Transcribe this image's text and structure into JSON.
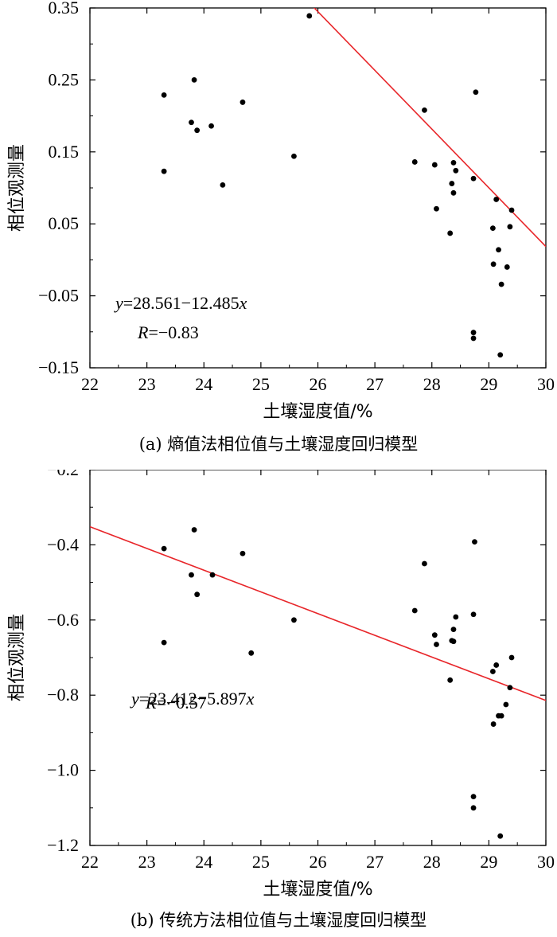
{
  "chart_data": [
    {
      "type": "scatter",
      "title": "",
      "xlabel": "土壤湿度值/%",
      "ylabel": "相位观测量",
      "caption": "(a) 熵值法相位值与土壤湿度回归模型",
      "xlim": [
        22,
        30
      ],
      "ylim": [
        -0.15,
        0.35
      ],
      "xticks": [
        22,
        23,
        24,
        25,
        26,
        27,
        28,
        29,
        30
      ],
      "yticks": [
        -0.15,
        -0.05,
        0.05,
        0.15,
        0.25,
        0.35
      ],
      "ytick_labels": [
        "−0.15",
        "−0.05",
        "0.05",
        "0.15",
        "0.25",
        "0.35"
      ],
      "grid": false,
      "equation_prefix": "y",
      "equation_body": "=28.561−12.485",
      "equation_var": "x",
      "r_prefix": "R",
      "r_body": "=−0.83",
      "regression": {
        "intercept": 2.4665,
        "slope": -0.0816
      },
      "points": [
        [
          23.3,
          0.229
        ],
        [
          23.3,
          0.123
        ],
        [
          23.78,
          0.191
        ],
        [
          23.83,
          0.25
        ],
        [
          23.88,
          0.18
        ],
        [
          24.13,
          0.186
        ],
        [
          24.33,
          0.104
        ],
        [
          24.68,
          0.219
        ],
        [
          25.58,
          0.144
        ],
        [
          25.85,
          0.339
        ],
        [
          27.7,
          0.136
        ],
        [
          27.87,
          0.208
        ],
        [
          28.05,
          0.132
        ],
        [
          28.08,
          0.071
        ],
        [
          28.32,
          0.037
        ],
        [
          28.35,
          0.106
        ],
        [
          28.38,
          0.135
        ],
        [
          28.38,
          0.093
        ],
        [
          28.42,
          0.124
        ],
        [
          28.73,
          0.113
        ],
        [
          28.73,
          -0.101
        ],
        [
          28.73,
          -0.109
        ],
        [
          28.77,
          0.233
        ],
        [
          29.07,
          0.044
        ],
        [
          29.08,
          -0.006
        ],
        [
          29.13,
          0.084
        ],
        [
          29.17,
          0.014
        ],
        [
          29.2,
          -0.132
        ],
        [
          29.22,
          -0.034
        ],
        [
          29.32,
          -0.01
        ],
        [
          29.37,
          0.046
        ],
        [
          29.4,
          0.069
        ]
      ]
    },
    {
      "type": "scatter",
      "title": "",
      "xlabel": "土壤湿度值/%",
      "ylabel": "相位观测量",
      "caption": "(b) 传统方法相位值与土壤湿度回归模型",
      "xlim": [
        22,
        30
      ],
      "ylim": [
        -1.2,
        -0.2
      ],
      "xticks": [
        22,
        23,
        24,
        25,
        26,
        27,
        28,
        29,
        30
      ],
      "yticks": [
        -1.2,
        -1.0,
        -0.8,
        -0.6,
        -0.4,
        -0.2
      ],
      "ytick_labels": [
        "−1.2",
        "−1.0",
        "−0.8",
        "−0.6",
        "−0.4",
        "−0.2"
      ],
      "grid": false,
      "equation_prefix": "y",
      "equation_body": "=23.412−5.897",
      "equation_var": "x",
      "r_prefix": "R",
      "r_body": "=−0.57",
      "regression": {
        "intercept": 0.9198,
        "slope": -0.0578
      },
      "points": [
        [
          23.3,
          -0.41
        ],
        [
          23.3,
          -0.66
        ],
        [
          23.78,
          -0.48
        ],
        [
          23.83,
          -0.36
        ],
        [
          23.88,
          -0.532
        ],
        [
          24.15,
          -0.48
        ],
        [
          24.68,
          -0.423
        ],
        [
          24.83,
          -0.688
        ],
        [
          25.58,
          -0.6
        ],
        [
          27.7,
          -0.575
        ],
        [
          27.87,
          -0.45
        ],
        [
          28.05,
          -0.64
        ],
        [
          28.08,
          -0.665
        ],
        [
          28.32,
          -0.76
        ],
        [
          28.35,
          -0.655
        ],
        [
          28.38,
          -0.625
        ],
        [
          28.38,
          -0.657
        ],
        [
          28.42,
          -0.592
        ],
        [
          28.73,
          -0.585
        ],
        [
          28.75,
          -0.392
        ],
        [
          28.73,
          -1.07
        ],
        [
          28.73,
          -1.1
        ],
        [
          29.07,
          -0.737
        ],
        [
          29.08,
          -0.877
        ],
        [
          29.13,
          -0.72
        ],
        [
          29.17,
          -0.855
        ],
        [
          29.2,
          -1.175
        ],
        [
          29.22,
          -0.855
        ],
        [
          29.3,
          -0.825
        ],
        [
          29.37,
          -0.78
        ],
        [
          29.4,
          -0.7
        ]
      ]
    }
  ]
}
